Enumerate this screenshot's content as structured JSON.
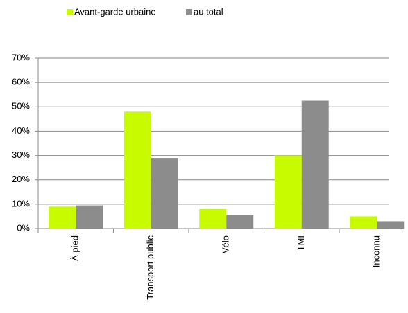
{
  "chart_data": {
    "type": "bar",
    "categories": [
      "À pied",
      "Transport public",
      "Vélo",
      "TMI",
      "Inconnu"
    ],
    "series": [
      {
        "name": "Avant-garde urbaine",
        "color": "#c8fa00",
        "values": [
          9,
          48,
          8,
          30,
          5
        ]
      },
      {
        "name": "au total",
        "color": "#8c8c8c",
        "values": [
          9.5,
          29,
          5.5,
          52.5,
          3
        ]
      }
    ],
    "ylim": [
      0,
      70
    ],
    "yticks": [
      {
        "value": 0,
        "label": "0%"
      },
      {
        "value": 10,
        "label": "10%"
      },
      {
        "value": 20,
        "label": "20%"
      },
      {
        "value": 30,
        "label": "30%"
      },
      {
        "value": 40,
        "label": "40%"
      },
      {
        "value": 50,
        "label": "50%"
      },
      {
        "value": 60,
        "label": "60%"
      },
      {
        "value": 70,
        "label": "70%"
      }
    ],
    "grid": true
  }
}
